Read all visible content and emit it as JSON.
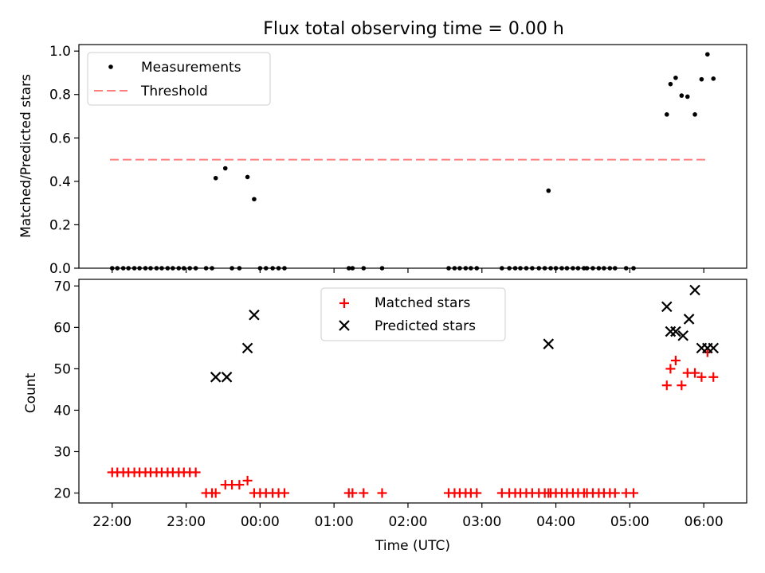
{
  "chart_data": [
    {
      "type": "scatter",
      "title": "Flux total observing time = 0.00 h",
      "xlabel": "",
      "ylabel": "Matched/Predicted stars",
      "xlim": [
        21.55,
        30.58
      ],
      "ylim": [
        0.0,
        1.03
      ],
      "x_ticks": [
        22,
        23,
        24,
        25,
        26,
        27,
        28,
        29,
        30
      ],
      "y_ticks": [
        0.0,
        0.2,
        0.4,
        0.6,
        0.8,
        1.0
      ],
      "y_tick_labels": [
        "0.0",
        "0.2",
        "0.4",
        "0.6",
        "0.8",
        "1.0"
      ],
      "legend_position": "top-left",
      "legend": [
        {
          "label": "Measurements",
          "marker": "dot",
          "color": "#000000"
        },
        {
          "label": "Threshold",
          "marker": "dashed-line",
          "color": "#ff7f7f"
        }
      ],
      "threshold": {
        "value": 0.5,
        "x_start": 21.97,
        "x_end": 30.07,
        "color": "#ff7f7f"
      },
      "series": [
        {
          "name": "Measurements",
          "color": "#000000",
          "x": [
            22.0,
            22.07,
            22.15,
            22.22,
            22.3,
            22.37,
            22.45,
            22.52,
            22.6,
            22.67,
            22.75,
            22.82,
            22.9,
            22.97,
            23.05,
            23.13,
            23.27,
            23.35,
            23.4,
            23.53,
            23.62,
            23.72,
            23.83,
            23.92,
            24.0,
            24.08,
            24.17,
            24.25,
            24.33,
            25.2,
            25.25,
            25.4,
            25.65,
            26.55,
            26.63,
            26.7,
            26.78,
            26.85,
            26.93,
            27.27,
            27.37,
            27.45,
            27.52,
            27.6,
            27.68,
            27.77,
            27.85,
            27.9,
            27.93,
            28.0,
            28.08,
            28.15,
            28.23,
            28.3,
            28.38,
            28.42,
            28.5,
            28.58,
            28.65,
            28.73,
            28.8,
            28.95,
            29.05,
            29.5,
            29.55,
            29.62,
            29.7,
            29.78,
            29.88,
            29.97,
            30.05,
            30.13
          ],
          "y": [
            0,
            0,
            0,
            0,
            0,
            0,
            0,
            0,
            0,
            0,
            0,
            0,
            0,
            0,
            0,
            0,
            0,
            0,
            0.415,
            0.46,
            0,
            0,
            0.42,
            0.318,
            0,
            0,
            0,
            0,
            0,
            0,
            0,
            0,
            0,
            0,
            0,
            0,
            0,
            0,
            0,
            0,
            0,
            0,
            0,
            0,
            0,
            0,
            0,
            0.357,
            0,
            0,
            0,
            0,
            0,
            0,
            0,
            0,
            0,
            0,
            0,
            0,
            0,
            0,
            0,
            0.708,
            0.848,
            0.877,
            0.795,
            0.79,
            0.708,
            0.87,
            0.985,
            0.873
          ]
        }
      ]
    },
    {
      "type": "scatter",
      "title": "",
      "xlabel": "Time (UTC)",
      "ylabel": "Count",
      "xlim": [
        21.55,
        30.58
      ],
      "ylim": [
        17.6,
        71.6
      ],
      "x_ticks": [
        22,
        23,
        24,
        25,
        26,
        27,
        28,
        29,
        30
      ],
      "x_tick_labels": [
        "22:00",
        "23:00",
        "00:00",
        "01:00",
        "02:00",
        "03:00",
        "04:00",
        "05:00",
        "06:00"
      ],
      "y_ticks": [
        20,
        30,
        40,
        50,
        60,
        70
      ],
      "y_tick_labels": [
        "20",
        "30",
        "40",
        "50",
        "60",
        "70"
      ],
      "legend_position": "top-center",
      "legend": [
        {
          "label": "Matched stars",
          "marker": "plus",
          "color": "#ff0000"
        },
        {
          "label": "Predicted stars",
          "marker": "x",
          "color": "#000000"
        }
      ],
      "series": [
        {
          "name": "Matched stars",
          "marker": "plus",
          "color": "#ff0000",
          "x": [
            22.0,
            22.07,
            22.15,
            22.22,
            22.3,
            22.37,
            22.45,
            22.52,
            22.6,
            22.67,
            22.75,
            22.82,
            22.9,
            22.97,
            23.05,
            23.13,
            23.27,
            23.35,
            23.4,
            23.53,
            23.62,
            23.72,
            23.83,
            23.92,
            24.0,
            24.08,
            24.17,
            24.25,
            24.33,
            25.2,
            25.25,
            25.4,
            25.65,
            26.55,
            26.63,
            26.7,
            26.78,
            26.85,
            26.93,
            27.27,
            27.37,
            27.45,
            27.52,
            27.6,
            27.68,
            27.77,
            27.85,
            27.9,
            27.93,
            28.0,
            28.08,
            28.15,
            28.23,
            28.3,
            28.38,
            28.42,
            28.5,
            28.58,
            28.65,
            28.73,
            28.8,
            28.95,
            29.05,
            29.5,
            29.55,
            29.62,
            29.7,
            29.78,
            29.88,
            29.97,
            30.05,
            30.13
          ],
          "y": [
            25,
            25,
            25,
            25,
            25,
            25,
            25,
            25,
            25,
            25,
            25,
            25,
            25,
            25,
            25,
            25,
            20,
            20,
            20,
            22,
            22,
            22,
            23,
            20,
            20,
            20,
            20,
            20,
            20,
            20,
            20,
            20,
            20,
            20,
            20,
            20,
            20,
            20,
            20,
            20,
            20,
            20,
            20,
            20,
            20,
            20,
            20,
            20,
            20,
            20,
            20,
            20,
            20,
            20,
            20,
            20,
            20,
            20,
            20,
            20,
            20,
            20,
            20,
            46,
            50,
            52,
            46,
            49,
            49,
            48,
            54,
            48
          ]
        },
        {
          "name": "Predicted stars",
          "marker": "x",
          "color": "#000000",
          "x": [
            23.4,
            23.55,
            23.83,
            23.92,
            27.9,
            29.5,
            29.55,
            29.62,
            29.72,
            29.8,
            29.88,
            29.97,
            30.05,
            30.13
          ],
          "y": [
            48,
            48,
            55,
            63,
            56,
            65,
            59,
            59,
            58,
            62,
            69,
            55,
            55,
            55
          ]
        }
      ]
    }
  ]
}
